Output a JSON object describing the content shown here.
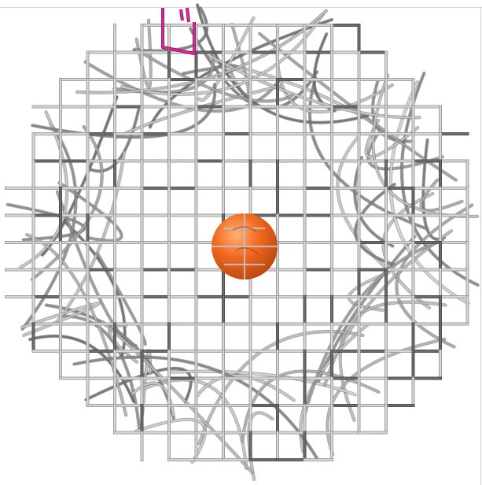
{
  "viewer": {
    "background": "#ffffff",
    "grid_color": "#b4b4b4",
    "grid_dark_color": "#6e6e6e",
    "mesh_color": "#8c8c8c",
    "ligand_color": "#e0289c",
    "sphere_color": "#f26a21",
    "sphere_highlight": "#ffb27a",
    "sphere_shadow": "#b8440f"
  },
  "objects": [
    {
      "name": "density-grid",
      "kind": "grid"
    },
    {
      "name": "protein-mesh",
      "kind": "mesh"
    },
    {
      "name": "ligand-fragment",
      "kind": "sticks"
    },
    {
      "name": "central-atom",
      "kind": "sphere"
    }
  ]
}
